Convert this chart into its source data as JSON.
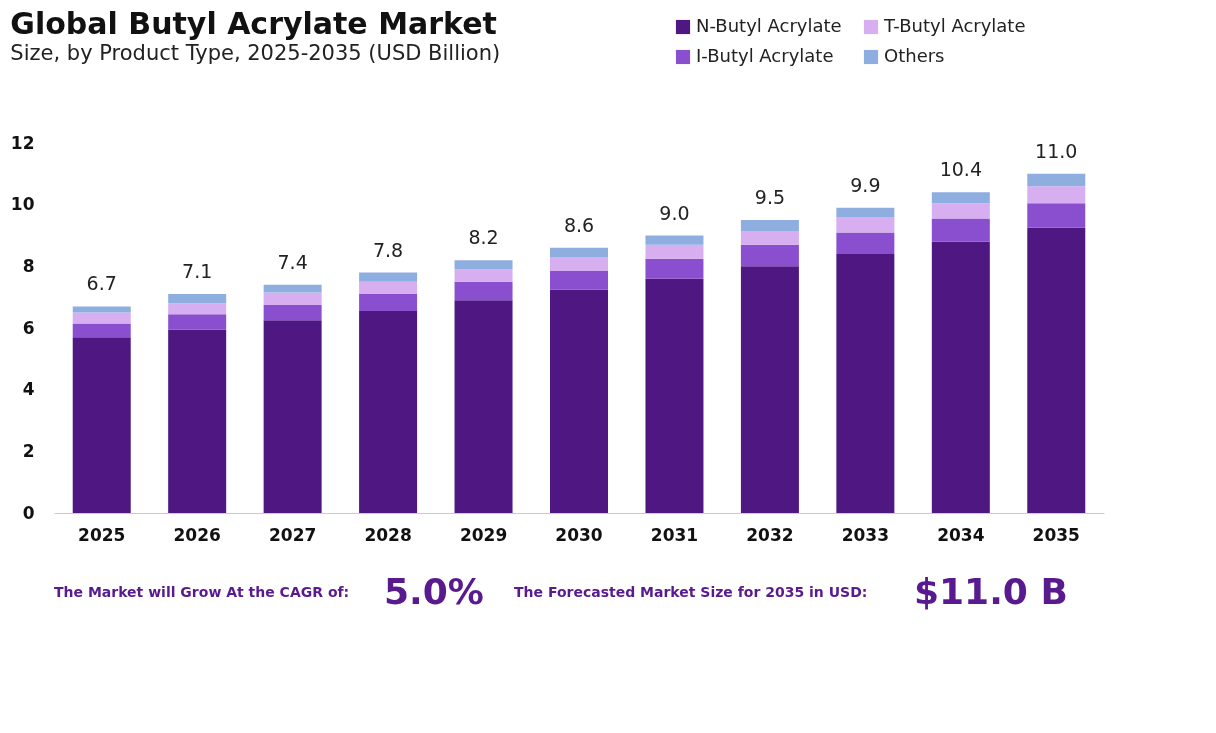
{
  "chart_data": {
    "type": "bar",
    "title": "Global Butyl Acrylate Market",
    "subtitle": "Size, by Product Type, 2025-2035 (USD Billion)",
    "categories": [
      "2025",
      "2026",
      "2027",
      "2028",
      "2029",
      "2030",
      "2031",
      "2032",
      "2033",
      "2034",
      "2035"
    ],
    "stacked": true,
    "series": [
      {
        "name": "N-Butyl Acrylate",
        "color": "#4e1782",
        "values": [
          5.7,
          5.95,
          6.25,
          6.55,
          6.9,
          7.25,
          7.6,
          8.0,
          8.4,
          8.8,
          9.25
        ]
      },
      {
        "name": "I-Butyl Acrylate",
        "color": "#8a4fcf",
        "values": [
          0.45,
          0.5,
          0.5,
          0.55,
          0.6,
          0.6,
          0.65,
          0.7,
          0.7,
          0.75,
          0.8
        ]
      },
      {
        "name": "T-Butyl Acrylate",
        "color": "#d7aef0",
        "values": [
          0.35,
          0.35,
          0.4,
          0.4,
          0.4,
          0.45,
          0.45,
          0.45,
          0.5,
          0.5,
          0.55
        ]
      },
      {
        "name": "Others",
        "color": "#8eaee0",
        "values": [
          0.2,
          0.3,
          0.25,
          0.3,
          0.3,
          0.3,
          0.3,
          0.35,
          0.3,
          0.35,
          0.4
        ]
      }
    ],
    "totals": [
      "6.7",
      "7.1",
      "7.4",
      "7.8",
      "8.2",
      "8.6",
      "9.0",
      "9.5",
      "9.9",
      "10.4",
      "11.0"
    ],
    "ylim": [
      0,
      12
    ],
    "yticks": [
      0,
      2,
      4,
      6,
      8,
      10,
      12
    ],
    "grid": false,
    "legend": "top right",
    "annotations": [
      "The Market will Grow At the CAGR of:",
      "5.0%",
      "The Forecasted Market Size for 2035 in USD:",
      "$11.0 B"
    ]
  }
}
